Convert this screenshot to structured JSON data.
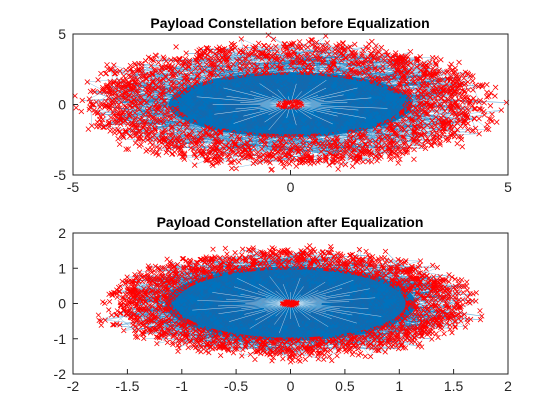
{
  "colors": {
    "background": "#ffffff",
    "received_symbols": "#0072BD",
    "marker": "#FF0000",
    "axes": "#262626"
  },
  "chart_data": [
    {
      "type": "scatter",
      "title": "Payload Constellation before Equalization",
      "xlabel": "",
      "ylabel": "",
      "xlim": [
        -5,
        5
      ],
      "ylim": [
        -5,
        5
      ],
      "xticks": [
        -5,
        0,
        5
      ],
      "yticks": [
        -5,
        0,
        5
      ],
      "xtick_labels": [
        "-5",
        "0",
        "5"
      ],
      "ytick_labels": [
        "-5",
        "0",
        "5"
      ],
      "grid": false,
      "legend": "none",
      "series": [
        {
          "marker": "x",
          "color": "#FF0000",
          "line_color": "#0072BD",
          "line": true,
          "distribution": "elliptical ring",
          "center": [
            0,
            0
          ],
          "outer_radius": [
            4.7,
            4.6
          ],
          "dense_core_radius": [
            2.8,
            2.3
          ],
          "center_cluster_radius": 0.3
        }
      ]
    },
    {
      "type": "scatter",
      "title": "Payload Constellation after Equalization",
      "xlabel": "",
      "ylabel": "",
      "xlim": [
        -2,
        2
      ],
      "ylim": [
        -2,
        2
      ],
      "xticks": [
        -2,
        -1.5,
        -1,
        -0.5,
        0,
        0.5,
        1,
        1.5,
        2
      ],
      "yticks": [
        -2,
        -1,
        0,
        1,
        2
      ],
      "xtick_labels": [
        "-2",
        "-1.5",
        "-1",
        "-0.5",
        "0",
        "0.5",
        "1",
        "1.5",
        "2"
      ],
      "ytick_labels": [
        "-2",
        "-1",
        "0",
        "1",
        "2"
      ],
      "grid": false,
      "legend": "none",
      "series": [
        {
          "marker": "x",
          "color": "#FF0000",
          "line_color": "#0072BD",
          "line": true,
          "distribution": "elliptical ring",
          "center": [
            0,
            0
          ],
          "outer_radius": [
            1.72,
            1.55
          ],
          "dense_core_radius": [
            1.15,
            1.05
          ],
          "center_cluster_radius": 0.08
        }
      ]
    }
  ]
}
